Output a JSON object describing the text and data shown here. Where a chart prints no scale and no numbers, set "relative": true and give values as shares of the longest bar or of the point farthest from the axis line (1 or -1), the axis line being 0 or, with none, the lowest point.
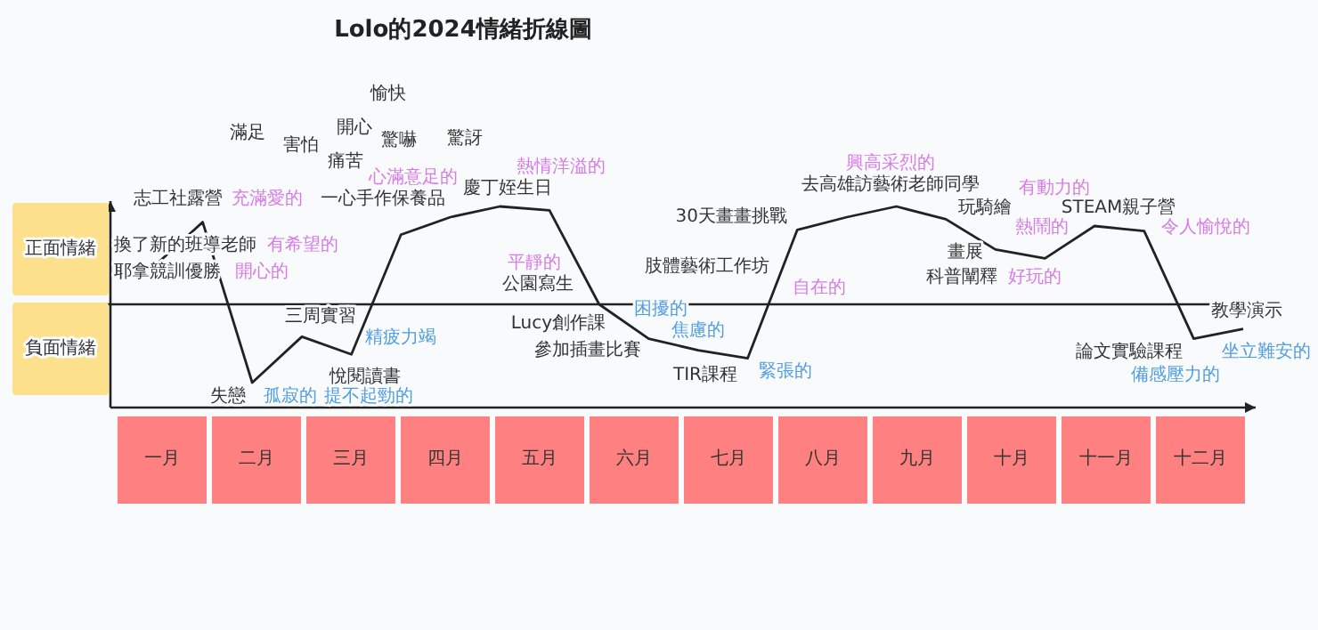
{
  "chart_data": {
    "type": "line",
    "title": "Lolo的2024情緒折線圖",
    "relative": true,
    "grid": false,
    "marker": "none",
    "line_style": "solid",
    "categories": [
      null,
      null,
      null,
      null,
      null,
      null,
      null,
      null,
      null,
      null,
      null,
      null,
      null,
      null,
      null,
      null,
      null,
      null,
      null,
      null,
      null,
      null,
      null
    ],
    "series": [
      {
        "color": "#222222",
        "values": [
          0.38,
          0.84,
          -0.8,
          -0.33,
          -0.51,
          0.71,
          0.89,
          1,
          0.96,
          0,
          -0.35,
          -0.47,
          -0.55,
          0.76,
          0.89,
          1,
          0.87,
          0.56,
          0.47,
          0.8,
          0.75,
          -0.35,
          -0.25
        ]
      }
    ],
    "annotations": [
      "志工社露營",
      "充滿愛的",
      "換了新的班導老師",
      "有希望的",
      "耶拿競訓優勝",
      "開心的",
      "失戀",
      "孤寂的",
      "三周實習",
      "精疲力竭",
      "悅閱讀書",
      "提不起勁的",
      "一心手作保養品",
      "心滿意足的",
      "慶丁姪生日",
      "熱情洋溢的",
      "公園寫生",
      "平靜的",
      "Lucy創作課",
      "困擾的",
      "參加插畫比賽",
      "焦慮的",
      "TIR課程",
      "緊張的",
      "肢體藝術工作坊",
      "自在的",
      "去高雄訪藝術老師同學",
      "興高采烈的",
      "玩騎繪",
      "有動力的",
      "畫展",
      "熱鬧的",
      "科普闡釋",
      "好玩的",
      "STEAM親子營",
      "令人愉悅的",
      "論文實驗課程",
      "備感壓力的",
      "教學演示",
      "坐立難安的",
      "30天畫畫挑戰",
      "滿足",
      "害怕",
      "開心",
      "愉快",
      "驚嚇",
      "驚訝",
      "痛苦",
      "正面情緒",
      "負面情緒",
      "一月",
      "二月",
      "三月",
      "四月",
      "五月",
      "六月",
      "七月",
      "八月",
      "九月",
      "十月",
      "十一月",
      "十二月"
    ]
  }
}
